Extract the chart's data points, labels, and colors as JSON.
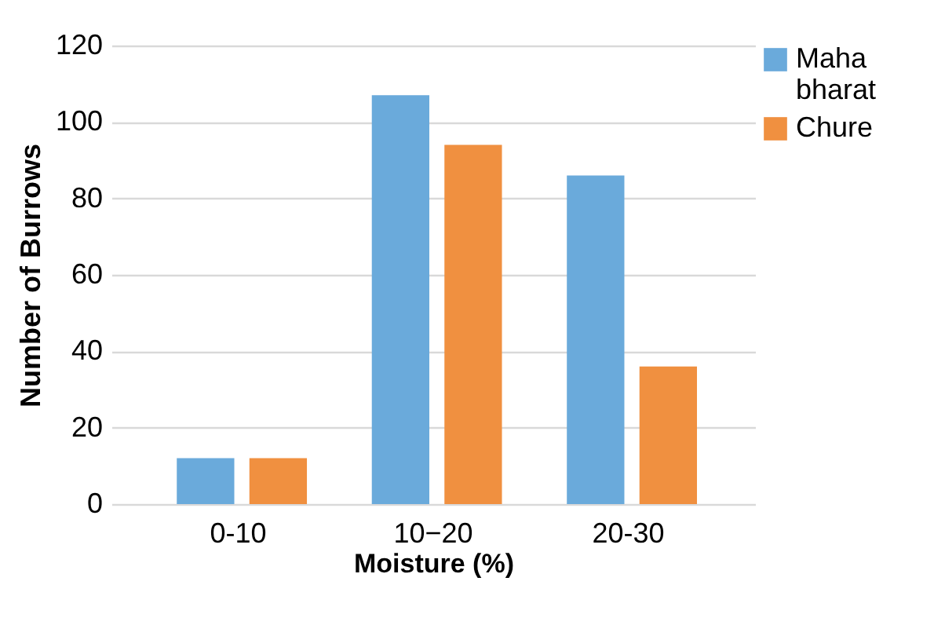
{
  "chart_data": {
    "type": "bar",
    "xlabel": "Moisture (%)",
    "ylabel": "Number of Burrows",
    "categories": [
      "0-10",
      "10−20",
      "20-30"
    ],
    "series": [
      {
        "name": "Maha bharat",
        "color": "#6aaadb",
        "values": [
          12,
          107,
          86
        ]
      },
      {
        "name": "Chure",
        "color": "#f09040",
        "values": [
          12,
          94,
          36
        ]
      }
    ],
    "ylim": [
      0,
      120
    ],
    "yticks": [
      0,
      20,
      40,
      60,
      80,
      100,
      120
    ],
    "grid": "y",
    "legend": "right"
  }
}
